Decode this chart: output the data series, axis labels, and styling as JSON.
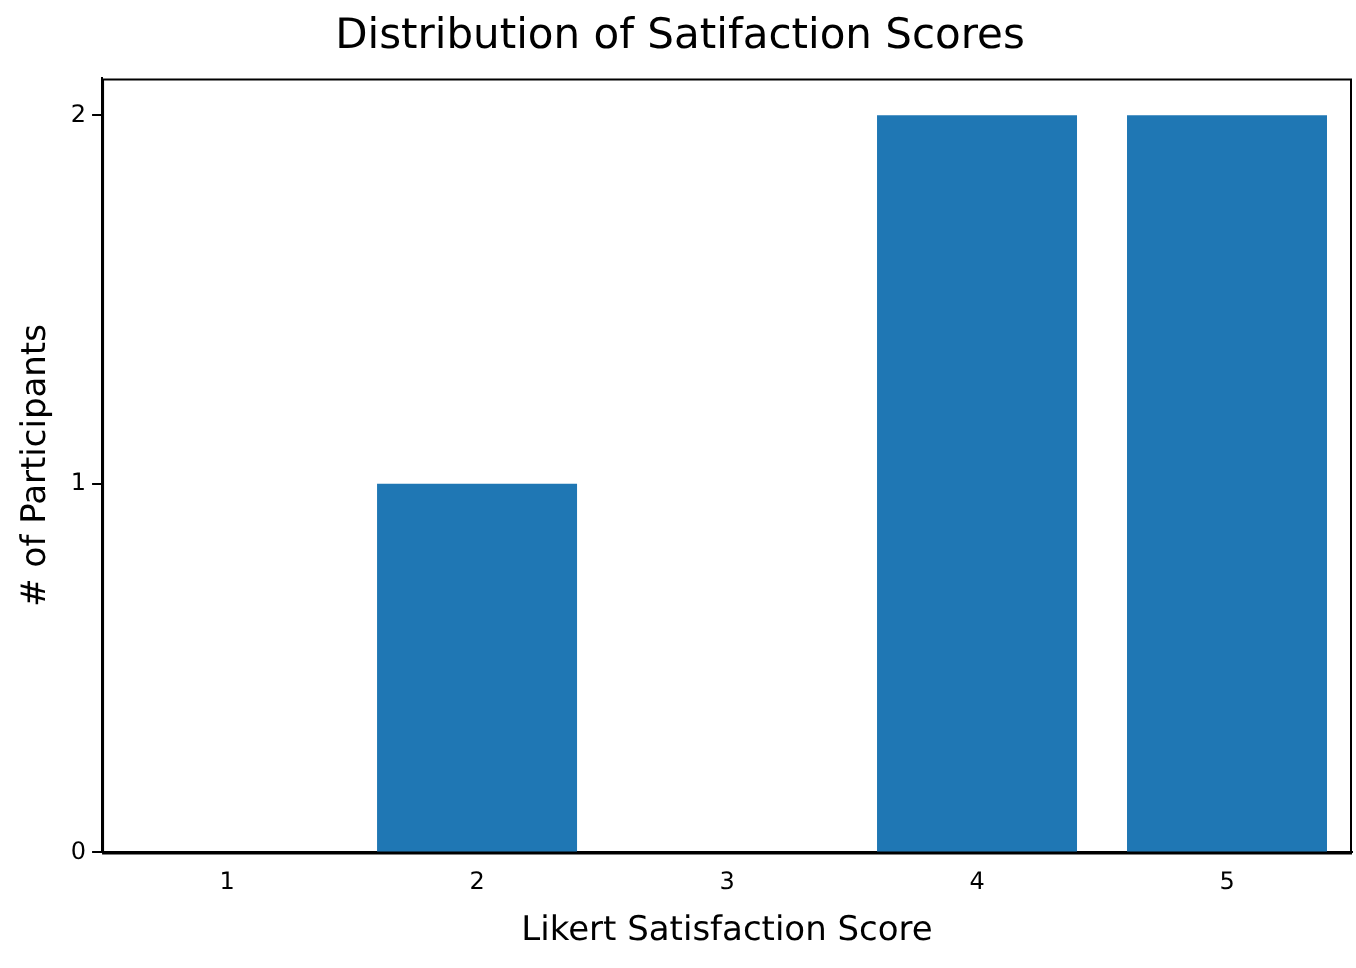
{
  "chart_data": {
    "type": "bar",
    "title": "Distribution of Satifaction Scores",
    "xlabel": "Likert Satisfaction Score",
    "ylabel": "# of Participants",
    "categories": [
      "1",
      "2",
      "3",
      "4",
      "5"
    ],
    "values": [
      0,
      1,
      0,
      2,
      2
    ],
    "color": "#1f77b4",
    "ylim": [
      0,
      2.1
    ],
    "yticks": [
      0,
      1,
      2
    ]
  }
}
